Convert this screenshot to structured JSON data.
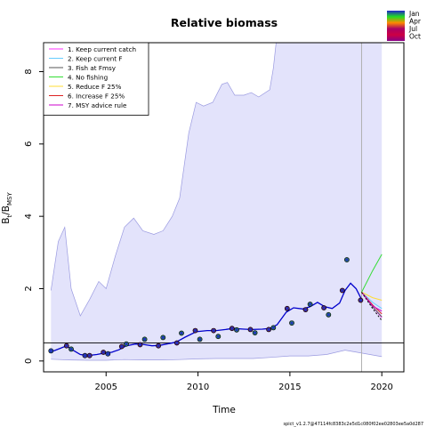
{
  "chart_data": {
    "type": "line",
    "title": "Relative biomass",
    "xlabel": "Time",
    "ylabel_main": "B",
    "ylabel_sub_t": "t",
    "ylabel_sep": "/B",
    "ylabel_sub_msy": "MSY",
    "xlim": [
      2001.6,
      2021.2
    ],
    "ylim": [
      -0.3,
      8.8
    ],
    "x_ticks": [
      2005,
      2010,
      2015,
      2020
    ],
    "x_tick_labels": [
      "2005",
      "2010",
      "2015",
      "2020"
    ],
    "y_ticks": [
      0,
      2,
      4,
      6,
      8
    ],
    "y_tick_labels": [
      "0",
      "2",
      "4",
      "6",
      "8"
    ],
    "reference_line_y": 0.5,
    "forecast_start_x": 2018.9,
    "grid": false,
    "legend_position": "top-left",
    "legend": [
      {
        "label": "1. Keep current catch",
        "color": "#ff33ff"
      },
      {
        "label": "2. Keep current F",
        "color": "#66ccff"
      },
      {
        "label": "3. Fish at Fmsy",
        "color": "#555555"
      },
      {
        "label": "4. No fishing",
        "color": "#33dd33"
      },
      {
        "label": "5. Reduce F 25%",
        "color": "#ffdd33"
      },
      {
        "label": "6. Increase F 25%",
        "color": "#dd2222"
      },
      {
        "label": "7. MSY advice rule",
        "color": "#cc00cc"
      }
    ],
    "season_legend": [
      {
        "label": "Jan",
        "color": "#2222cc"
      },
      {
        "label": "Apr",
        "color": "#22dd22"
      },
      {
        "label": "Jul",
        "color": "#ff8800"
      },
      {
        "label": "Oct",
        "color": "#aa0066"
      }
    ],
    "ci_upper": [
      [
        2002,
        1.95
      ],
      [
        2002.4,
        3.3
      ],
      [
        2002.75,
        3.7
      ],
      [
        2003.1,
        2.0
      ],
      [
        2003.6,
        1.25
      ],
      [
        2004.1,
        1.7
      ],
      [
        2004.6,
        2.2
      ],
      [
        2005.0,
        2.0
      ],
      [
        2005.5,
        2.9
      ],
      [
        2006.0,
        3.7
      ],
      [
        2006.5,
        3.95
      ],
      [
        2007.0,
        3.6
      ],
      [
        2007.6,
        3.5
      ],
      [
        2008.1,
        3.6
      ],
      [
        2008.6,
        4.0
      ],
      [
        2009.0,
        4.5
      ],
      [
        2009.5,
        6.3
      ],
      [
        2009.9,
        7.15
      ],
      [
        2010.3,
        7.05
      ],
      [
        2010.8,
        7.15
      ],
      [
        2011.3,
        7.65
      ],
      [
        2011.6,
        7.7
      ],
      [
        2012.0,
        7.35
      ],
      [
        2012.5,
        7.35
      ],
      [
        2012.9,
        7.42
      ],
      [
        2013.3,
        7.3
      ],
      [
        2013.9,
        7.5
      ],
      [
        2014.1,
        8.1
      ],
      [
        2014.25,
        8.8
      ]
    ],
    "ci_lower": [
      [
        2002,
        0.05
      ],
      [
        2003,
        0.03
      ],
      [
        2004,
        0.02
      ],
      [
        2005,
        0.02
      ],
      [
        2006,
        0.04
      ],
      [
        2007,
        0.03
      ],
      [
        2008,
        0.03
      ],
      [
        2009,
        0.04
      ],
      [
        2010,
        0.06
      ],
      [
        2011,
        0.07
      ],
      [
        2012,
        0.07
      ],
      [
        2013,
        0.07
      ],
      [
        2014,
        0.1
      ],
      [
        2015,
        0.14
      ],
      [
        2016,
        0.14
      ],
      [
        2017,
        0.18
      ],
      [
        2018,
        0.3
      ],
      [
        2018.9,
        0.22
      ],
      [
        2020,
        0.12
      ]
    ],
    "ci_upper_forecast": [
      [
        2018.9,
        8.8
      ],
      [
        2020,
        8.8
      ]
    ],
    "series": [
      {
        "name": "Estimated relative biomass",
        "color": "#0000cc",
        "points": [
          [
            2002.0,
            0.25
          ],
          [
            2002.5,
            0.35
          ],
          [
            2002.85,
            0.42
          ],
          [
            2003.1,
            0.33
          ],
          [
            2003.6,
            0.18
          ],
          [
            2004.0,
            0.15
          ],
          [
            2004.5,
            0.18
          ],
          [
            2004.9,
            0.22
          ],
          [
            2005.3,
            0.24
          ],
          [
            2005.7,
            0.31
          ],
          [
            2006.1,
            0.42
          ],
          [
            2006.6,
            0.47
          ],
          [
            2007.0,
            0.46
          ],
          [
            2007.5,
            0.42
          ],
          [
            2007.9,
            0.43
          ],
          [
            2008.3,
            0.47
          ],
          [
            2008.8,
            0.52
          ],
          [
            2009.3,
            0.66
          ],
          [
            2009.9,
            0.81
          ],
          [
            2010.5,
            0.84
          ],
          [
            2011.0,
            0.84
          ],
          [
            2011.5,
            0.87
          ],
          [
            2011.9,
            0.9
          ],
          [
            2012.5,
            0.88
          ],
          [
            2012.9,
            0.87
          ],
          [
            2013.5,
            0.88
          ],
          [
            2013.9,
            0.9
          ],
          [
            2014.3,
            1.0
          ],
          [
            2014.8,
            1.35
          ],
          [
            2015.2,
            1.47
          ],
          [
            2015.7,
            1.44
          ],
          [
            2016.1,
            1.5
          ],
          [
            2016.5,
            1.62
          ],
          [
            2016.9,
            1.5
          ],
          [
            2017.3,
            1.45
          ],
          [
            2017.7,
            1.6
          ],
          [
            2018.0,
            1.95
          ],
          [
            2018.3,
            2.15
          ],
          [
            2018.6,
            2.0
          ],
          [
            2018.9,
            1.7
          ]
        ]
      }
    ],
    "forecasts": [
      {
        "name": "1. Keep current catch",
        "color": "#ff33ff",
        "points": [
          [
            2018.9,
            1.9
          ],
          [
            2019.5,
            1.5
          ],
          [
            2020,
            1.2
          ]
        ]
      },
      {
        "name": "2. Keep current F",
        "color": "#66ccff",
        "points": [
          [
            2018.9,
            1.9
          ],
          [
            2019.5,
            1.62
          ],
          [
            2020,
            1.45
          ]
        ]
      },
      {
        "name": "3. Fish at Fmsy",
        "color": "#555555",
        "points": [
          [
            2018.9,
            1.9
          ],
          [
            2019.5,
            1.5
          ],
          [
            2020,
            1.22
          ]
        ]
      },
      {
        "name": "4. No fishing",
        "color": "#33dd33",
        "points": [
          [
            2018.9,
            1.9
          ],
          [
            2019.5,
            2.5
          ],
          [
            2020,
            2.95
          ]
        ]
      },
      {
        "name": "5. Reduce F 25%",
        "color": "#ffdd33",
        "points": [
          [
            2018.9,
            1.9
          ],
          [
            2019.5,
            1.75
          ],
          [
            2020,
            1.68
          ]
        ]
      },
      {
        "name": "6. Increase F 25%",
        "color": "#dd2222",
        "points": [
          [
            2018.9,
            1.9
          ],
          [
            2019.5,
            1.55
          ],
          [
            2020,
            1.3
          ]
        ]
      },
      {
        "name": "7. MSY advice rule",
        "color": "#cc00cc",
        "points": [
          [
            2018.9,
            1.9
          ],
          [
            2019.5,
            1.52
          ],
          [
            2020,
            1.38
          ]
        ]
      },
      {
        "name": "Forecast lower",
        "color": "#000000",
        "dashed": true,
        "points": [
          [
            2018.9,
            1.9
          ],
          [
            2019.5,
            1.45
          ],
          [
            2020,
            1.12
          ]
        ]
      }
    ],
    "observations": [
      {
        "x": 2002.0,
        "y": 0.28,
        "color": "#2255aa"
      },
      {
        "x": 2002.85,
        "y": 0.42,
        "color": "#6a1a5a"
      },
      {
        "x": 2003.1,
        "y": 0.33,
        "color": "#2a8a5a"
      },
      {
        "x": 2003.85,
        "y": 0.15,
        "color": "#3a3a9a"
      },
      {
        "x": 2004.1,
        "y": 0.15,
        "color": "#6a1a6a"
      },
      {
        "x": 2004.85,
        "y": 0.24,
        "color": "#6a1a5a"
      },
      {
        "x": 2005.1,
        "y": 0.2,
        "color": "#2255aa"
      },
      {
        "x": 2005.85,
        "y": 0.4,
        "color": "#6a1a5a"
      },
      {
        "x": 2006.1,
        "y": 0.47,
        "color": "#2a8a5a"
      },
      {
        "x": 2006.85,
        "y": 0.45,
        "color": "#6a1a5a"
      },
      {
        "x": 2007.1,
        "y": 0.6,
        "color": "#2a8a5a"
      },
      {
        "x": 2007.85,
        "y": 0.42,
        "color": "#6a1a5a"
      },
      {
        "x": 2008.1,
        "y": 0.65,
        "color": "#2a8a5a"
      },
      {
        "x": 2008.85,
        "y": 0.5,
        "color": "#6a1a5a"
      },
      {
        "x": 2009.1,
        "y": 0.77,
        "color": "#2a8a5a"
      },
      {
        "x": 2009.85,
        "y": 0.84,
        "color": "#6a1a5a"
      },
      {
        "x": 2010.1,
        "y": 0.6,
        "color": "#2a8a5a"
      },
      {
        "x": 2010.85,
        "y": 0.84,
        "color": "#6a1a5a"
      },
      {
        "x": 2011.1,
        "y": 0.68,
        "color": "#2a8a5a"
      },
      {
        "x": 2011.85,
        "y": 0.9,
        "color": "#6a1a5a"
      },
      {
        "x": 2012.1,
        "y": 0.86,
        "color": "#2a8a5a"
      },
      {
        "x": 2012.85,
        "y": 0.87,
        "color": "#6a1a5a"
      },
      {
        "x": 2013.1,
        "y": 0.78,
        "color": "#2a8a5a"
      },
      {
        "x": 2013.85,
        "y": 0.87,
        "color": "#6a1a5a"
      },
      {
        "x": 2014.1,
        "y": 0.92,
        "color": "#2a8a5a"
      },
      {
        "x": 2014.85,
        "y": 1.45,
        "color": "#6a1a5a"
      },
      {
        "x": 2015.1,
        "y": 1.05,
        "color": "#2a8a5a"
      },
      {
        "x": 2015.85,
        "y": 1.42,
        "color": "#6a1a5a"
      },
      {
        "x": 2016.1,
        "y": 1.57,
        "color": "#2a8a5a"
      },
      {
        "x": 2016.85,
        "y": 1.47,
        "color": "#6a1a5a"
      },
      {
        "x": 2017.1,
        "y": 1.28,
        "color": "#2a8a5a"
      },
      {
        "x": 2017.85,
        "y": 1.95,
        "color": "#6a1a5a"
      },
      {
        "x": 2018.1,
        "y": 2.8,
        "color": "#2a8a5a"
      },
      {
        "x": 2018.85,
        "y": 1.68,
        "color": "#6a1a5a"
      }
    ]
  },
  "footer_text": "spict_v1.2.7@47114fc8383c2e5d1c080f02ee02803ee5a0d287"
}
